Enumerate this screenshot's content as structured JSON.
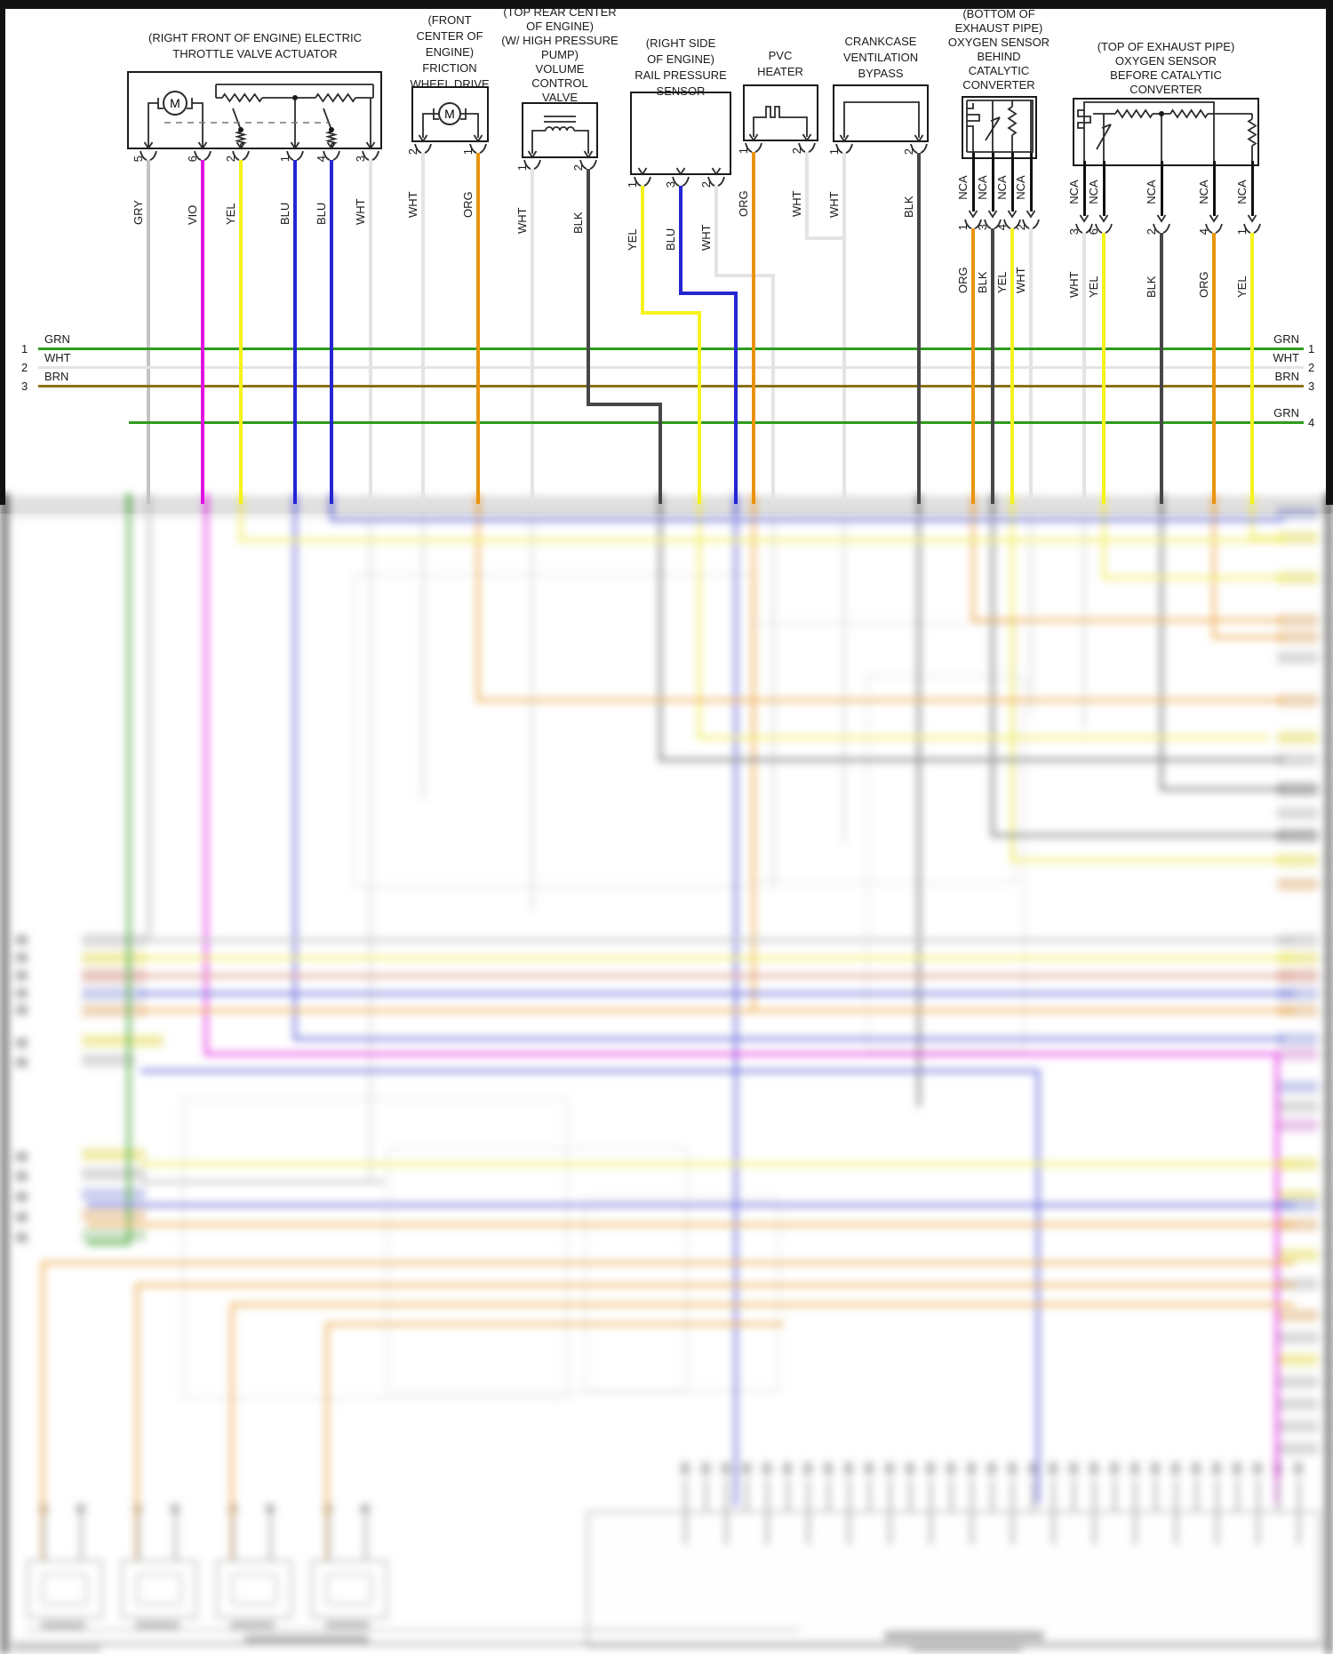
{
  "diagram": {
    "wire_colors": {
      "GRN": "#2f9b1e",
      "WHT": "#e4e4e4",
      "BRN": "#8a7214",
      "GRY": "#c3c3c3",
      "VIO": "#e211e2",
      "YEL": "#f6f21d",
      "BLU": "#2525d2",
      "ORG": "#ea930e",
      "BLK": "#474747",
      "NCA": "#111111"
    },
    "bus": {
      "rows": [
        {
          "num": "1",
          "label": "GRN"
        },
        {
          "num": "2",
          "label": "WHT"
        },
        {
          "num": "3",
          "label": "BRN"
        },
        {
          "num": "4",
          "label": "GRN"
        }
      ]
    },
    "components": [
      {
        "name": "electric-throttle-valve-actuator",
        "label_lines": [
          "(RIGHT FRONT OF ENGINE) ELECTRIC",
          "THROTTLE VALVE ACTUATOR"
        ],
        "motor_letter": "M",
        "wires": [
          {
            "color": "GRY",
            "pin": "5"
          },
          {
            "color": "VIO",
            "pin": "6"
          },
          {
            "color": "YEL",
            "pin": "2"
          },
          {
            "color": "BLU",
            "pin": "1"
          },
          {
            "color": "BLU",
            "pin": "4"
          },
          {
            "color": "WHT",
            "pin": "3"
          }
        ]
      },
      {
        "name": "friction-wheel-drive",
        "label_lines": [
          "(FRONT",
          "CENTER OF",
          "ENGINE)",
          "FRICTION",
          "WHEEL DRIVE"
        ],
        "motor_letter": "M",
        "wires": [
          {
            "color": "WHT",
            "pin": "2"
          },
          {
            "color": "ORG",
            "pin": "1"
          }
        ]
      },
      {
        "name": "volume-control-valve",
        "label_lines": [
          "(TOP REAR CENTER",
          "OF ENGINE)",
          "(W/ HIGH PRESSURE",
          "PUMP)",
          "VOLUME",
          "CONTROL",
          "VALVE"
        ],
        "wires": [
          {
            "color": "WHT",
            "pin": "1"
          },
          {
            "color": "BLK",
            "pin": "2"
          }
        ]
      },
      {
        "name": "rail-pressure-sensor",
        "label_lines": [
          "(RIGHT SIDE",
          "OF ENGINE)",
          "RAIL PRESSURE",
          "SENSOR"
        ],
        "wires": [
          {
            "color": "YEL",
            "pin": "1"
          },
          {
            "color": "BLU",
            "pin": "3"
          },
          {
            "color": "WHT",
            "pin": "2"
          }
        ]
      },
      {
        "name": "pvc-heater",
        "label_lines": [
          "PVC",
          "HEATER"
        ],
        "wires": [
          {
            "color": "ORG",
            "pin": "1"
          },
          {
            "color": "WHT",
            "pin": "2"
          }
        ]
      },
      {
        "name": "crankcase-ventilation-bypass",
        "label_lines": [
          "CRANKCASE",
          "VENTILATION",
          "BYPASS"
        ],
        "wires": [
          {
            "color": "WHT",
            "pin": "1"
          },
          {
            "color": "BLK",
            "pin": "2"
          }
        ]
      },
      {
        "name": "oxygen-sensor-behind-catalytic-converter",
        "label_lines": [
          "(BOTTOM OF",
          "EXHAUST PIPE)",
          "OXYGEN SENSOR",
          "BEHIND",
          "CATALYTIC",
          "CONVERTER"
        ],
        "nca_label": "NCA",
        "wires": [
          {
            "color": "ORG",
            "pin": "1"
          },
          {
            "color": "BLK",
            "pin": "3"
          },
          {
            "color": "YEL",
            "pin": "4"
          },
          {
            "color": "WHT",
            "pin": "2"
          }
        ]
      },
      {
        "name": "oxygen-sensor-before-catalytic-converter",
        "label_lines": [
          "(TOP OF EXHAUST PIPE)",
          "OXYGEN SENSOR",
          "BEFORE CATALYTIC",
          "CONVERTER"
        ],
        "nca_label": "NCA",
        "wires": [
          {
            "color": "WHT",
            "pin": "3"
          },
          {
            "color": "YEL",
            "pin": "6"
          },
          {
            "color": "BLK",
            "pin": "2"
          },
          {
            "color": "ORG",
            "pin": "4"
          },
          {
            "color": "YEL",
            "pin": "1"
          }
        ]
      }
    ]
  }
}
